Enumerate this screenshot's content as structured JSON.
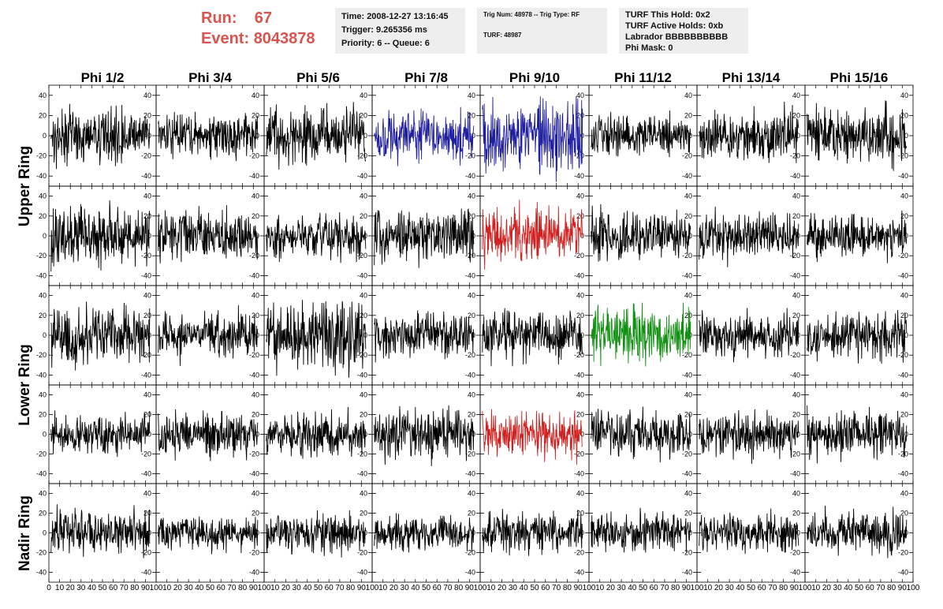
{
  "header": {
    "run_label": "Run:",
    "run_value": "67",
    "event_label": "Event:",
    "event_value": "8043878"
  },
  "info_boxes": {
    "time": "Time: 2008-12-27 13:16:45",
    "trigger": "Trigger: 9.265356 ms",
    "priority": "Priority: 6 -- Queue: 6",
    "trig_num": "Trig Num: 48978 -- Trig Type: RF",
    "turf": "TURF: 48987",
    "turf_this_hold": "TURF This Hold: 0x2",
    "turf_active_holds": "TURF Active Holds: 0xb",
    "labrador": "Labrador BBBBBBBBBB",
    "phi_mask": "Phi Mask: 0"
  },
  "chart_data": {
    "type": "line",
    "columns": [
      "Phi 1/2",
      "Phi 3/4",
      "Phi 5/6",
      "Phi 7/8",
      "Phi 9/10",
      "Phi 11/12",
      "Phi 13/14",
      "Phi 15/16"
    ],
    "ring_labels": [
      "Upper Ring",
      "Lower Ring",
      "Nadir Ring"
    ],
    "ylim": [
      -50,
      50
    ],
    "yticks": [
      -40,
      -20,
      0,
      20,
      40
    ],
    "xlim": [
      0,
      100
    ],
    "xticks": [
      0,
      10,
      20,
      30,
      40,
      50,
      60,
      70,
      80,
      90,
      100
    ],
    "xticks_last_col": [
      10,
      20,
      30,
      40,
      50,
      60,
      70,
      80,
      90,
      100
    ],
    "samples_per_trace": 260,
    "trace_colors": {
      "default": "#000000",
      "blue": "#1f1fa0",
      "red": "#d02020",
      "green": "#129012"
    },
    "highlighted_traces": [
      {
        "row": 0,
        "col": 3,
        "color": "blue"
      },
      {
        "row": 0,
        "col": 4,
        "color": "blue"
      },
      {
        "row": 1,
        "col": 4,
        "color": "red"
      },
      {
        "row": 2,
        "col": 5,
        "color": "green"
      },
      {
        "row": 3,
        "col": 4,
        "color": "red"
      }
    ],
    "trace_amplitude": [
      [
        18,
        15,
        20,
        18,
        28,
        14,
        18,
        20
      ],
      [
        20,
        18,
        15,
        18,
        20,
        18,
        16,
        16
      ],
      [
        20,
        16,
        26,
        16,
        18,
        20,
        16,
        16
      ],
      [
        14,
        16,
        16,
        18,
        16,
        16,
        16,
        18
      ],
      [
        16,
        12,
        14,
        12,
        14,
        14,
        14,
        16
      ]
    ]
  }
}
